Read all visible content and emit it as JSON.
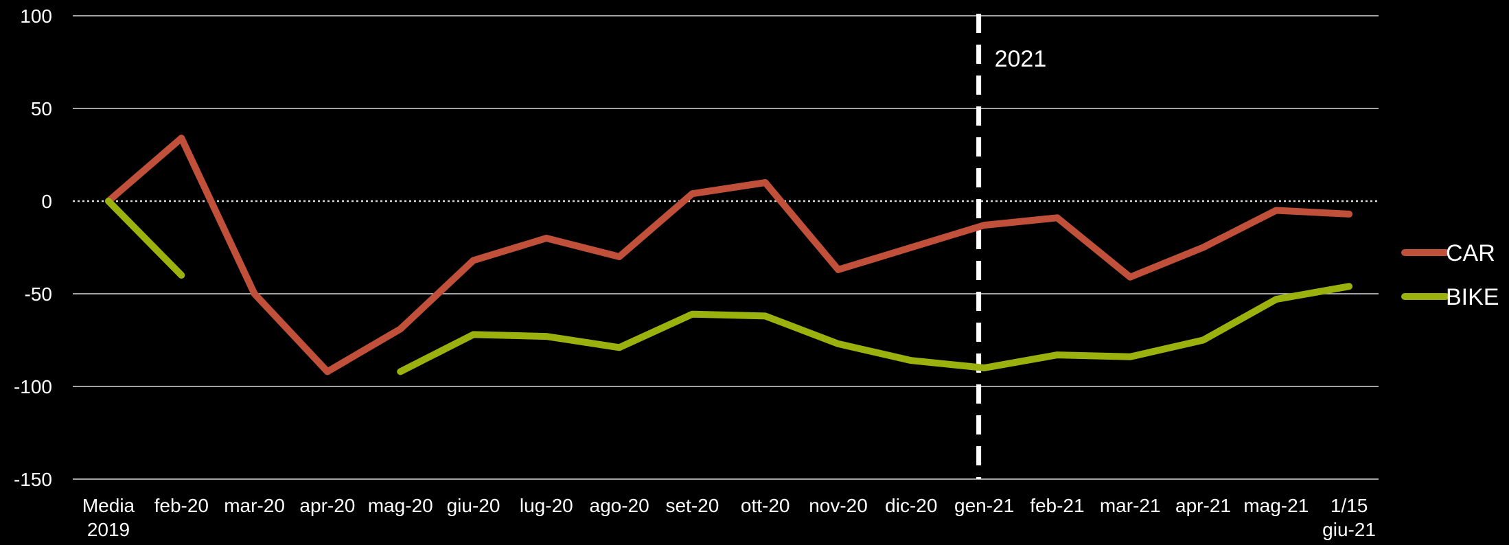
{
  "chart_data": {
    "type": "line",
    "categories": [
      [
        "Media",
        "2019"
      ],
      [
        "feb-20"
      ],
      [
        "mar-20"
      ],
      [
        "apr-20"
      ],
      [
        "mag-20"
      ],
      [
        "giu-20"
      ],
      [
        "lug-20"
      ],
      [
        "ago-20"
      ],
      [
        "set-20"
      ],
      [
        "ott-20"
      ],
      [
        "nov-20"
      ],
      [
        "dic-20"
      ],
      [
        "gen-21"
      ],
      [
        "feb-21"
      ],
      [
        "mar-21"
      ],
      [
        "apr-21"
      ],
      [
        "mag-21"
      ],
      [
        "1/15",
        "giu-21"
      ]
    ],
    "series": [
      {
        "name": "CAR",
        "color": "#c0503a",
        "values": [
          0,
          34,
          -50,
          -92,
          -69,
          -32,
          -20,
          -30,
          4,
          10,
          -37,
          -25,
          -13,
          -9,
          -41,
          -25,
          -5,
          -7
        ]
      },
      {
        "name": "BIKE",
        "color": "#9bb20e",
        "values": [
          0,
          -40,
          null,
          null,
          -92,
          -72,
          -73,
          -79,
          -61,
          -62,
          -77,
          -86,
          -90,
          -83,
          -84,
          -75,
          -53,
          -46
        ]
      }
    ],
    "xlabel": "",
    "ylabel": "",
    "ylim": [
      -150,
      100
    ],
    "yticks": [
      100,
      50,
      0,
      -50,
      -100,
      -150
    ],
    "grid": true,
    "zero_line": "dotted",
    "legend_position": "right",
    "annotations": [
      {
        "text": "2021",
        "at_category": "gen-21",
        "style": "dashed-vertical-line"
      }
    ]
  }
}
